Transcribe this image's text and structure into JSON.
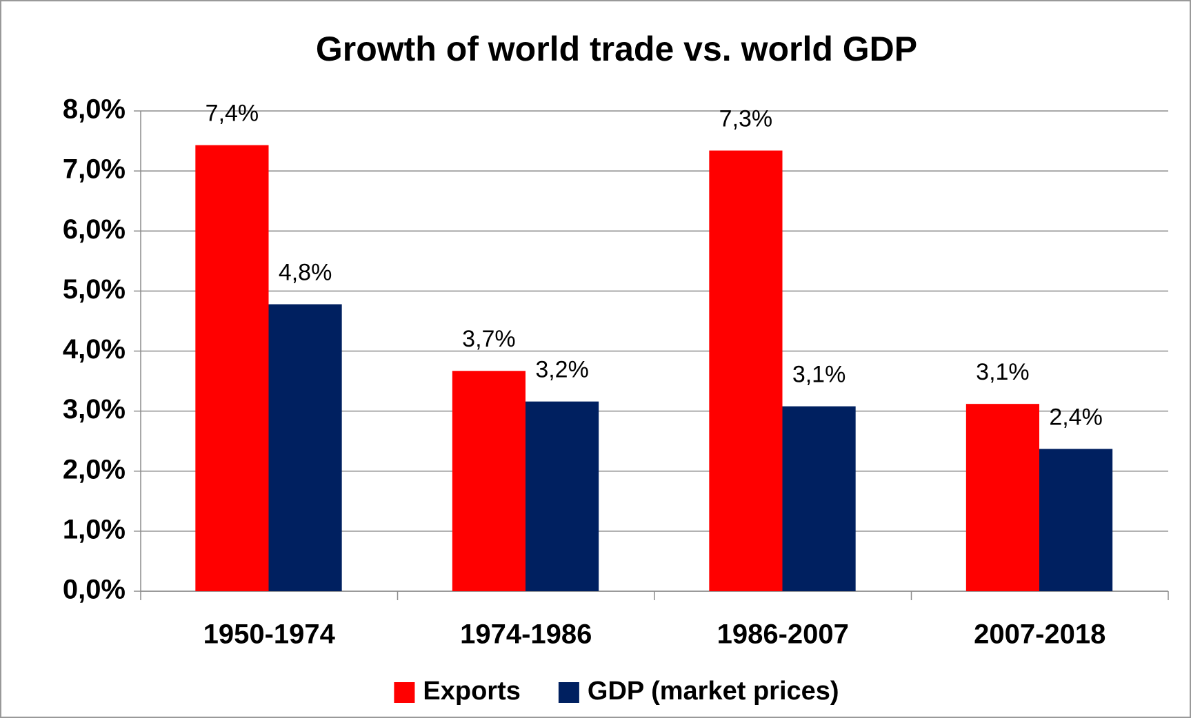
{
  "chart_data": {
    "type": "bar",
    "title": "Growth of world trade vs. world GDP",
    "categories": [
      "1950-1974",
      "1974-1986",
      "1986-2007",
      "2007-2018"
    ],
    "series": [
      {
        "name": "Exports",
        "color": "#ff0000",
        "values": [
          7.43,
          3.67,
          7.34,
          3.12
        ],
        "value_labels": [
          "7,4%",
          "3,7%",
          "7,3%",
          "3,1%"
        ]
      },
      {
        "name": "GDP (market prices)",
        "color": "#002060",
        "values": [
          4.78,
          3.16,
          3.08,
          2.37
        ],
        "value_labels": [
          "4,8%",
          "3,2%",
          "3,1%",
          "2,4%"
        ]
      }
    ],
    "ylim": [
      0,
      8
    ],
    "yticks": [
      {
        "value": 0,
        "label": "0,0%"
      },
      {
        "value": 1,
        "label": "1,0%"
      },
      {
        "value": 2,
        "label": "2,0%"
      },
      {
        "value": 3,
        "label": "3,0%"
      },
      {
        "value": 4,
        "label": "4,0%"
      },
      {
        "value": 5,
        "label": "5,0%"
      },
      {
        "value": 6,
        "label": "6,0%"
      },
      {
        "value": 7,
        "label": "7,0%"
      },
      {
        "value": 8,
        "label": "8,0%"
      }
    ],
    "grid": true,
    "legend": "bottom"
  }
}
